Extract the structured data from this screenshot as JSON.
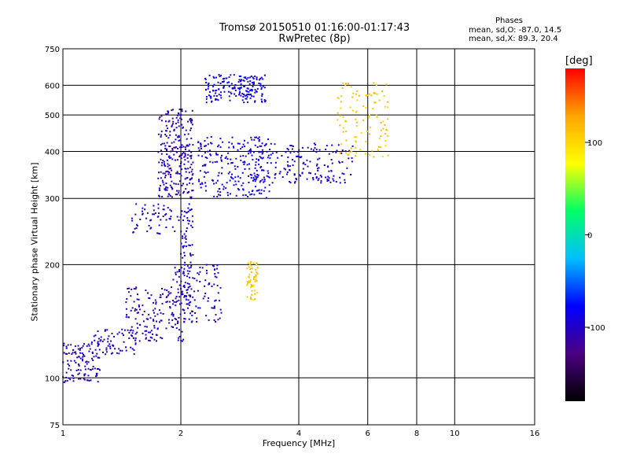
{
  "chart_data": {
    "type": "scatter",
    "title": "Tromsø 20150510 01:16:00-01:17:43",
    "subtitle": "RwPretec (8p)",
    "xlabel": "Frequency [MHz]",
    "ylabel": "Stationary phase Virtual Height [km]",
    "x_scale": "log",
    "y_scale": "log",
    "xlim": [
      1,
      16
    ],
    "ylim": [
      75,
      750
    ],
    "x_ticks": [
      1,
      2,
      4,
      6,
      8,
      10,
      16
    ],
    "x_tick_labels": [
      "1",
      "2",
      "4",
      "6",
      "8",
      "10",
      "16"
    ],
    "y_ticks": [
      75,
      100,
      200,
      300,
      400,
      500,
      600,
      750
    ],
    "y_tick_labels": [
      "75",
      "100",
      "200",
      "300",
      "400",
      "500",
      "600",
      "750"
    ],
    "grid": true,
    "colorbar": {
      "unit": "[deg]",
      "min": -180,
      "max": 180,
      "ticks": [
        100,
        0,
        -100
      ],
      "tick_labels": [
        "100",
        "0",
        "-100"
      ],
      "colormap": [
        "#000000",
        "#4b0082",
        "#0000ff",
        "#00bfff",
        "#00ff66",
        "#ffff00",
        "#ffa500",
        "#ff0000"
      ]
    },
    "legend_title": "Phases",
    "annotations": [
      "mean, sd,O:  -87.0, 14.5",
      "mean, sd,X:  89.3, 20.4"
    ],
    "clusters": [
      {
        "f_range": [
          1.0,
          1.25
        ],
        "h_range": [
          97,
          125
        ],
        "phase": -105,
        "count": 120
      },
      {
        "f_range": [
          1.2,
          1.55
        ],
        "h_range": [
          115,
          135
        ],
        "phase": -100,
        "count": 70
      },
      {
        "f_range": [
          1.45,
          2.05
        ],
        "h_range": [
          125,
          175
        ],
        "phase": -105,
        "count": 160
      },
      {
        "f_range": [
          1.9,
          2.55
        ],
        "h_range": [
          140,
          200
        ],
        "phase": -100,
        "count": 110
      },
      {
        "f_range": [
          2.0,
          2.15
        ],
        "h_range": [
          150,
          290
        ],
        "phase": -95,
        "count": 80
      },
      {
        "f_range": [
          1.5,
          2.0
        ],
        "h_range": [
          240,
          290
        ],
        "phase": -100,
        "count": 60
      },
      {
        "f_range": [
          1.75,
          2.15
        ],
        "h_range": [
          300,
          520
        ],
        "phase": -105,
        "count": 260
      },
      {
        "f_range": [
          2.2,
          3.4
        ],
        "h_range": [
          300,
          440
        ],
        "phase": -90,
        "count": 230
      },
      {
        "f_range": [
          2.3,
          3.3
        ],
        "h_range": [
          540,
          640
        ],
        "phase": -85,
        "count": 180
      },
      {
        "f_range": [
          3.0,
          5.5
        ],
        "h_range": [
          330,
          420
        ],
        "phase": -95,
        "count": 170
      },
      {
        "f_range": [
          5.0,
          6.8
        ],
        "h_range": [
          380,
          610
        ],
        "phase": 110,
        "count": 110
      },
      {
        "f_range": [
          2.95,
          3.15
        ],
        "h_range": [
          160,
          205
        ],
        "phase": 110,
        "count": 60
      }
    ]
  }
}
